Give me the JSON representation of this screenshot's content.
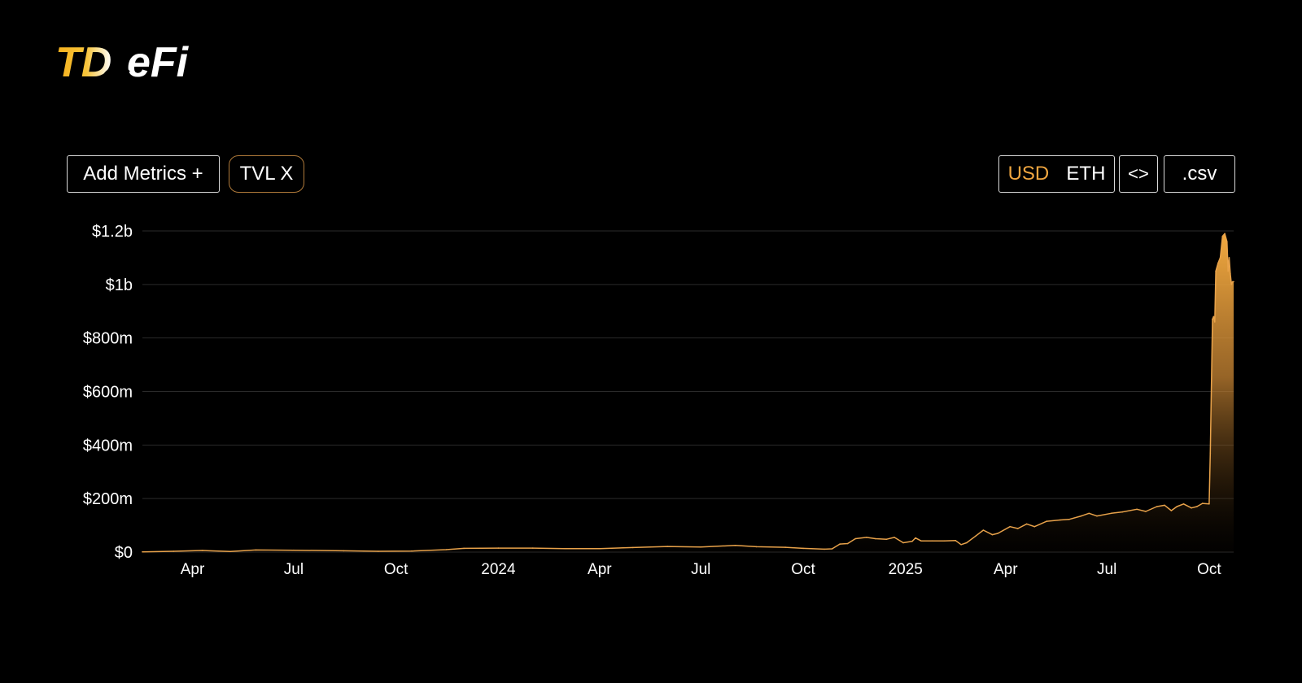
{
  "brand": {
    "logo_text_left": "TD",
    "logo_text_right": "eFi"
  },
  "toolbar": {
    "add_metrics_label": "Add Metrics +",
    "tvl_label": "TVL X",
    "currency_usd": "USD",
    "currency_eth": "ETH",
    "active_currency": "USD",
    "embed_label": "<>",
    "csv_label": ".csv"
  },
  "colors": {
    "accent": "#f0a640",
    "line": "#e8a24a",
    "fill_top": "#f2a93f",
    "grid": "#2a2a2a",
    "background": "#000000"
  },
  "chart_data": {
    "type": "area",
    "title": "",
    "xlabel": "",
    "ylabel": "",
    "ylim": [
      0,
      1200
    ],
    "y_unit": "millions USD",
    "y_ticks": [
      {
        "value": 0,
        "label": "$0"
      },
      {
        "value": 200,
        "label": "$200m"
      },
      {
        "value": 400,
        "label": "$400m"
      },
      {
        "value": 600,
        "label": "$600m"
      },
      {
        "value": 800,
        "label": "$800m"
      },
      {
        "value": 1000,
        "label": "$1b"
      },
      {
        "value": 1200,
        "label": "$1.2b"
      }
    ],
    "xlim": [
      "2023-02-15",
      "2025-10-23"
    ],
    "x_ticks": [
      {
        "value": "2023-04-01",
        "label": "Apr"
      },
      {
        "value": "2023-07-01",
        "label": "Jul"
      },
      {
        "value": "2023-10-01",
        "label": "Oct"
      },
      {
        "value": "2024-01-01",
        "label": "2024"
      },
      {
        "value": "2024-04-01",
        "label": "Apr"
      },
      {
        "value": "2024-07-01",
        "label": "Jul"
      },
      {
        "value": "2024-10-01",
        "label": "Oct"
      },
      {
        "value": "2025-01-01",
        "label": "2025"
      },
      {
        "value": "2025-04-01",
        "label": "Apr"
      },
      {
        "value": "2025-07-01",
        "label": "Jul"
      },
      {
        "value": "2025-10-01",
        "label": "Oct"
      }
    ],
    "grid": true,
    "series": [
      {
        "points": [
          [
            "2023-02-15",
            1
          ],
          [
            "2023-03-15",
            3
          ],
          [
            "2023-04-10",
            6
          ],
          [
            "2023-05-05",
            2
          ],
          [
            "2023-05-28",
            8
          ],
          [
            "2023-07-01",
            7
          ],
          [
            "2023-08-15",
            5
          ],
          [
            "2023-09-15",
            3
          ],
          [
            "2023-10-15",
            4
          ],
          [
            "2023-11-15",
            9
          ],
          [
            "2023-12-01",
            14
          ],
          [
            "2024-01-01",
            15
          ],
          [
            "2024-02-01",
            15
          ],
          [
            "2024-03-01",
            13
          ],
          [
            "2024-04-01",
            13
          ],
          [
            "2024-05-01",
            17
          ],
          [
            "2024-06-01",
            21
          ],
          [
            "2024-07-01",
            19
          ],
          [
            "2024-08-01",
            25
          ],
          [
            "2024-08-20",
            20
          ],
          [
            "2024-09-15",
            18
          ],
          [
            "2024-10-01",
            14
          ],
          [
            "2024-10-20",
            11
          ],
          [
            "2024-10-27",
            12
          ],
          [
            "2024-11-03",
            30
          ],
          [
            "2024-11-10",
            32
          ],
          [
            "2024-11-17",
            50
          ],
          [
            "2024-11-27",
            55
          ],
          [
            "2024-12-05",
            50
          ],
          [
            "2024-12-15",
            48
          ],
          [
            "2024-12-22",
            55
          ],
          [
            "2024-12-30",
            35
          ],
          [
            "2025-01-07",
            40
          ],
          [
            "2025-01-10",
            53
          ],
          [
            "2025-01-15",
            42
          ],
          [
            "2025-01-25",
            42
          ],
          [
            "2025-02-05",
            42
          ],
          [
            "2025-02-15",
            43
          ],
          [
            "2025-02-20",
            28
          ],
          [
            "2025-02-25",
            35
          ],
          [
            "2025-03-05",
            60
          ],
          [
            "2025-03-12",
            82
          ],
          [
            "2025-03-20",
            65
          ],
          [
            "2025-03-25",
            70
          ],
          [
            "2025-04-05",
            95
          ],
          [
            "2025-04-12",
            88
          ],
          [
            "2025-04-20",
            105
          ],
          [
            "2025-04-27",
            95
          ],
          [
            "2025-05-08",
            115
          ],
          [
            "2025-05-20",
            120
          ],
          [
            "2025-05-28",
            122
          ],
          [
            "2025-06-08",
            135
          ],
          [
            "2025-06-15",
            145
          ],
          [
            "2025-06-22",
            135
          ],
          [
            "2025-07-05",
            145
          ],
          [
            "2025-07-15",
            150
          ],
          [
            "2025-07-28",
            160
          ],
          [
            "2025-08-05",
            152
          ],
          [
            "2025-08-15",
            170
          ],
          [
            "2025-08-22",
            175
          ],
          [
            "2025-08-28",
            155
          ],
          [
            "2025-09-02",
            170
          ],
          [
            "2025-09-08",
            180
          ],
          [
            "2025-09-15",
            165
          ],
          [
            "2025-09-20",
            170
          ],
          [
            "2025-09-25",
            182
          ],
          [
            "2025-10-01",
            180
          ],
          [
            "2025-10-02",
            370
          ],
          [
            "2025-10-04",
            870
          ],
          [
            "2025-10-05",
            880
          ],
          [
            "2025-10-06",
            860
          ],
          [
            "2025-10-07",
            1050
          ],
          [
            "2025-10-09",
            1080
          ],
          [
            "2025-10-11",
            1100
          ],
          [
            "2025-10-13",
            1180
          ],
          [
            "2025-10-15",
            1190
          ],
          [
            "2025-10-17",
            1160
          ],
          [
            "2025-10-18",
            1050
          ],
          [
            "2025-10-19",
            1100
          ],
          [
            "2025-10-20",
            1040
          ],
          [
            "2025-10-21",
            1000
          ],
          [
            "2025-10-22",
            1010
          ],
          [
            "2025-10-23",
            1010
          ]
        ]
      }
    ]
  }
}
